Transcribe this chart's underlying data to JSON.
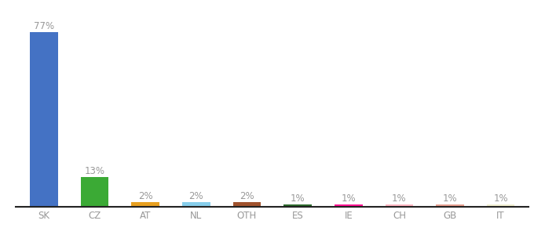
{
  "categories": [
    "SK",
    "CZ",
    "AT",
    "NL",
    "OTH",
    "ES",
    "IE",
    "CH",
    "GB",
    "IT"
  ],
  "values": [
    77,
    13,
    2,
    2,
    2,
    1,
    1,
    1,
    1,
    1
  ],
  "bar_colors": [
    "#4472C4",
    "#3BAA35",
    "#E8A020",
    "#87CEEB",
    "#A0522D",
    "#2D6A2D",
    "#FF1493",
    "#FFB6C1",
    "#E8A090",
    "#F0EED0"
  ],
  "label_color": "#999999",
  "ylim": [
    0,
    83
  ],
  "background_color": "#ffffff",
  "label_fontsize": 8.5,
  "tick_fontsize": 8.5,
  "bar_width": 0.55
}
